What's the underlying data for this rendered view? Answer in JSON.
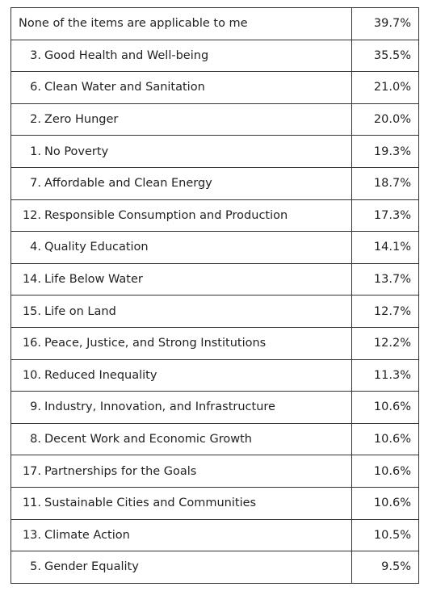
{
  "table": {
    "rows": [
      {
        "label": "None of the items are applicable to me",
        "value": "39.7%"
      },
      {
        "number": "3.",
        "label": "Good Health and Well-being",
        "value": "35.5%"
      },
      {
        "number": "6.",
        "label": "Clean Water and Sanitation",
        "value": "21.0%"
      },
      {
        "number": "2.",
        "label": "Zero Hunger",
        "value": "20.0%"
      },
      {
        "number": "1.",
        "label": "No Poverty",
        "value": "19.3%"
      },
      {
        "number": "7.",
        "label": "Affordable and Clean Energy",
        "value": "18.7%"
      },
      {
        "number": "12.",
        "label": "Responsible Consumption and Production",
        "value": "17.3%"
      },
      {
        "number": "4.",
        "label": "Quality Education",
        "value": "14.1%"
      },
      {
        "number": "14.",
        "label": "Life Below Water",
        "value": "13.7%"
      },
      {
        "number": "15.",
        "label": "Life on Land",
        "value": "12.7%"
      },
      {
        "number": "16.",
        "label": "Peace, Justice, and Strong Institutions",
        "value": "12.2%"
      },
      {
        "number": "10.",
        "label": "Reduced Inequality",
        "value": "11.3%"
      },
      {
        "number": "9.",
        "label": "Industry, Innovation, and Infrastructure",
        "value": "10.6%"
      },
      {
        "number": "8.",
        "label": "Decent Work and Economic Growth",
        "value": "10.6%"
      },
      {
        "number": "17.",
        "label": "Partnerships for the Goals",
        "value": "10.6%"
      },
      {
        "number": "11.",
        "label": "Sustainable Cities and Communities",
        "value": "10.6%"
      },
      {
        "number": "13.",
        "label": "Climate Action",
        "value": "10.5%"
      },
      {
        "number": "5.",
        "label": "Gender Equality",
        "value": "9.5%"
      }
    ]
  }
}
